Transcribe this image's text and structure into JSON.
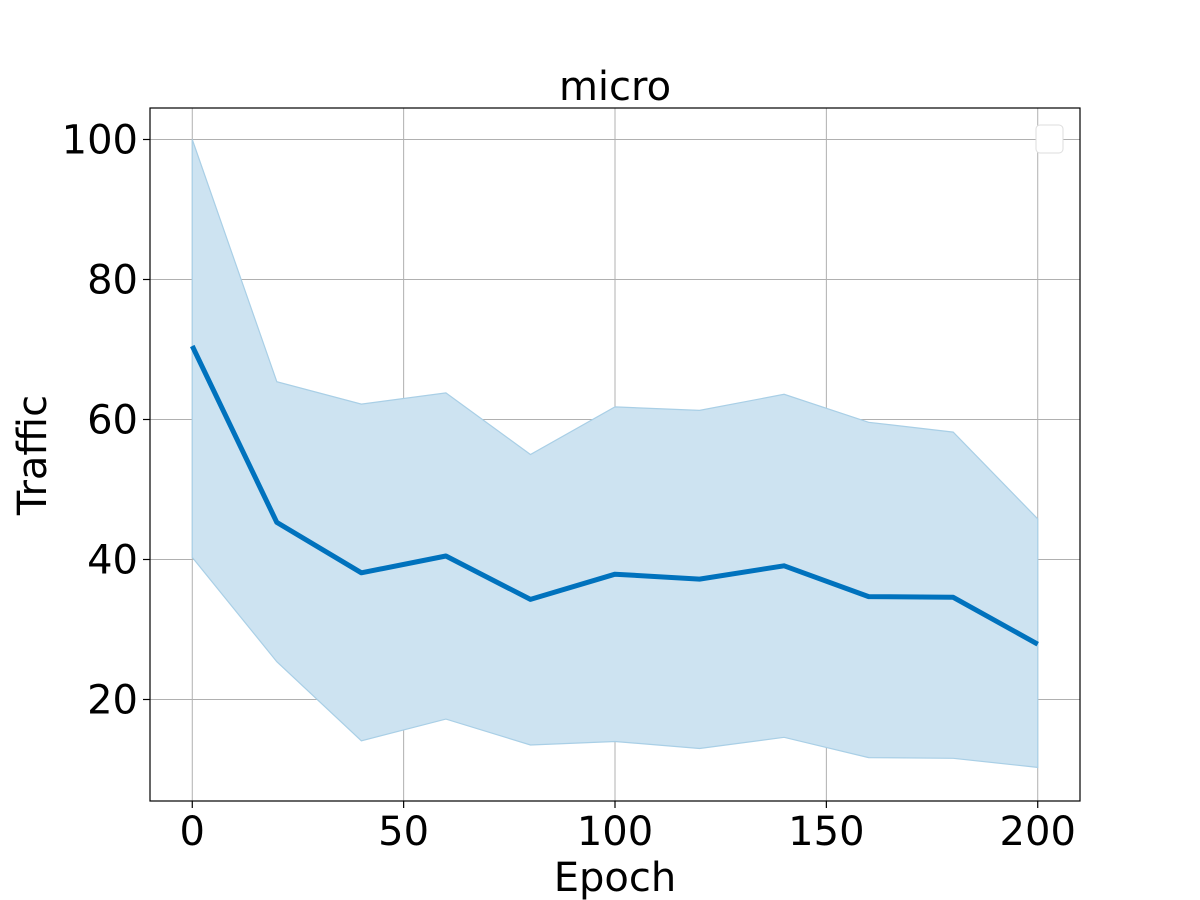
{
  "chart_data": {
    "type": "line",
    "title": "micro",
    "xlabel": "Epoch",
    "ylabel": "Traffic",
    "xlim": [
      -10,
      210
    ],
    "ylim": [
      5.5,
      104.5
    ],
    "xticks": [
      0,
      50,
      100,
      150,
      200
    ],
    "yticks": [
      20,
      40,
      60,
      80,
      100
    ],
    "xtick_labels": [
      "0",
      "50",
      "100",
      "150",
      "200"
    ],
    "ytick_labels": [
      "20",
      "40",
      "60",
      "80",
      "100"
    ],
    "grid": true,
    "legend": "top-right (empty)",
    "x": [
      0,
      20,
      40,
      60,
      80,
      100,
      120,
      140,
      160,
      180,
      200
    ],
    "series": [
      {
        "values": [
          70.5,
          45.3,
          38.1,
          40.5,
          34.3,
          37.9,
          37.2,
          39.1,
          34.7,
          34.6,
          27.9
        ],
        "color": "#0072bd",
        "band_upper": [
          100,
          65.4,
          62.2,
          63.8,
          55.0,
          61.8,
          61.3,
          63.6,
          59.6,
          58.2,
          45.8
        ],
        "band_lower": [
          40.3,
          25.4,
          14.1,
          17.2,
          13.5,
          14.0,
          13.0,
          14.6,
          11.7,
          11.6,
          10.3
        ],
        "band_color": "#cde3f1",
        "band_edge_color": "#a9cfe6"
      }
    ]
  }
}
